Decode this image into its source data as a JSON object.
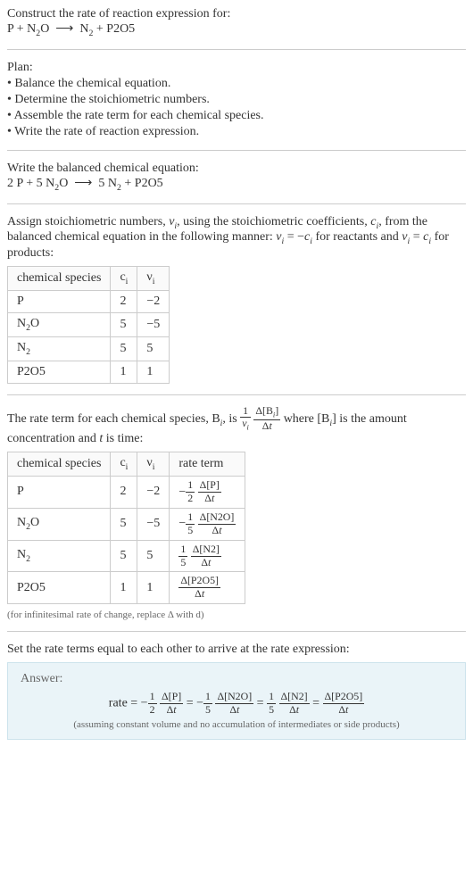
{
  "header": {
    "title": "Construct the rate of reaction expression for:",
    "equation_html": "P + N<sub>2</sub>O &nbsp;⟶&nbsp; N<sub>2</sub> + P2O5"
  },
  "plan": {
    "title": "Plan:",
    "items": [
      "• Balance the chemical equation.",
      "• Determine the stoichiometric numbers.",
      "• Assemble the rate term for each chemical species.",
      "• Write the rate of reaction expression."
    ]
  },
  "balanced": {
    "title": "Write the balanced chemical equation:",
    "equation_html": "2 P + 5 N<sub>2</sub>O &nbsp;⟶&nbsp; 5 N<sub>2</sub> + P2O5"
  },
  "stoich": {
    "intro_html": "Assign stoichiometric numbers, <span class='ital'>ν<sub>i</sub></span>, using the stoichiometric coefficients, <span class='ital'>c<sub>i</sub></span>, from the balanced chemical equation in the following manner: <span class='ital'>ν<sub>i</sub></span> = −<span class='ital'>c<sub>i</sub></span> for reactants and <span class='ital'>ν<sub>i</sub></span> = <span class='ital'>c<sub>i</sub></span> for products:",
    "headers": [
      "chemical species",
      "c<sub>i</sub>",
      "ν<sub>i</sub>"
    ],
    "rows": [
      [
        "P",
        "2",
        "−2"
      ],
      [
        "N<sub>2</sub>O",
        "5",
        "−5"
      ],
      [
        "N<sub>2</sub>",
        "5",
        "5"
      ],
      [
        "P2O5",
        "1",
        "1"
      ]
    ]
  },
  "rate_term": {
    "intro_html": "The rate term for each chemical species, B<sub><span class='ital'>i</span></sub>, is <span class='frac'><span class='num'>1</span><span class='den'><span class='ital'>ν<sub>i</sub></span></span></span> <span class='frac'><span class='num'>Δ[B<sub><span class='ital'>i</span></sub>]</span><span class='den'>Δ<span class='ital'>t</span></span></span> where [B<sub><span class='ital'>i</span></sub>] is the amount concentration and <span class='ital'>t</span> is time:",
    "headers": [
      "chemical species",
      "c<sub>i</sub>",
      "ν<sub>i</sub>",
      "rate term"
    ],
    "rows": [
      [
        "P",
        "2",
        "−2",
        "<span class='neg'>−<span class='frac'><span class='num'>1</span><span class='den'>2</span></span> <span class='frac'><span class='num'>Δ[P]</span><span class='den'>Δ<span class='ital'>t</span></span></span></span>"
      ],
      [
        "N<sub>2</sub>O",
        "5",
        "−5",
        "<span class='neg'>−<span class='frac'><span class='num'>1</span><span class='den'>5</span></span> <span class='frac'><span class='num'>Δ[N2O]</span><span class='den'>Δ<span class='ital'>t</span></span></span></span>"
      ],
      [
        "N<sub>2</sub>",
        "5",
        "5",
        "<span class='frac'><span class='num'>1</span><span class='den'>5</span></span> <span class='frac'><span class='num'>Δ[N2]</span><span class='den'>Δ<span class='ital'>t</span></span></span>"
      ],
      [
        "P2O5",
        "1",
        "1",
        "<span class='frac'><span class='num'>Δ[P2O5]</span><span class='den'>Δ<span class='ital'>t</span></span></span>"
      ]
    ],
    "note": "(for infinitesimal rate of change, replace Δ with d)"
  },
  "final": {
    "intro": "Set the rate terms equal to each other to arrive at the rate expression:",
    "answer_label": "Answer:",
    "rate_html": "rate = −<span class='frac'><span class='num'>1</span><span class='den'>2</span></span> <span class='frac'><span class='num'>Δ[P]</span><span class='den'>Δ<span class='ital'>t</span></span></span> = −<span class='frac'><span class='num'>1</span><span class='den'>5</span></span> <span class='frac'><span class='num'>Δ[N2O]</span><span class='den'>Δ<span class='ital'>t</span></span></span> = <span class='frac'><span class='num'>1</span><span class='den'>5</span></span> <span class='frac'><span class='num'>Δ[N2]</span><span class='den'>Δ<span class='ital'>t</span></span></span> = <span class='frac'><span class='num'>Δ[P2O5]</span><span class='den'>Δ<span class='ital'>t</span></span></span>",
    "note": "(assuming constant volume and no accumulation of intermediates or side products)"
  }
}
